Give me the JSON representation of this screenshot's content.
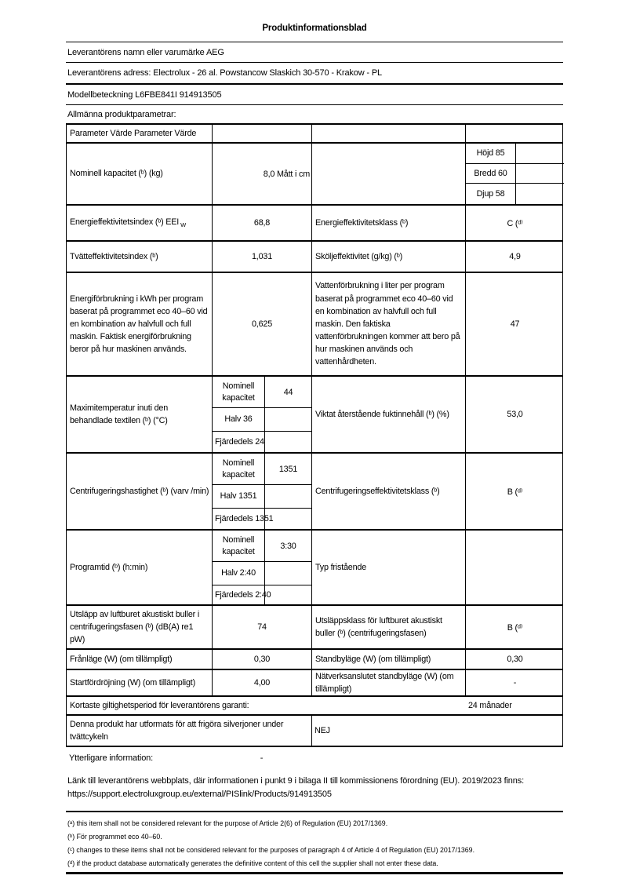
{
  "colors": {
    "background": "#ffffff",
    "text": "#000000",
    "border": "#000000"
  },
  "header": {
    "title": "Produktinformationsblad",
    "supplier_name": "Leverantörens namn eller varumärke AEG",
    "supplier_address": "Leverantörens adress: Electrolux - 26 al. Powstancow Slaskich 30-570 - Krakow - PL",
    "model": "Modellbeteckning L6FBE841I 914913505",
    "general_params_heading": "Allmänna produktparametrar:"
  },
  "table": {
    "header_row": "Parameter Värde Parameter Värde",
    "nominal": {
      "label": "Nominell kapacitet (ᵇ) (kg)",
      "value": "8,0 Mått i cm",
      "dimensions": {
        "height": "Höjd 85",
        "width": "Bredd 60",
        "depth": "Djup 58"
      }
    },
    "eei": {
      "label_main": "Energieffektivitetsindex (ᵇ) EEI",
      "label_sub": "W",
      "value": "68,8",
      "class_label": "Energieffektivitetsklass (ᵇ)",
      "class_value": "C (ᵈ⁾"
    },
    "wash": {
      "label": "Tvätteffektivitetsindex (ᵇ)",
      "value": "1,031",
      "rinse_label": "Sköljeffektivitet (g/kg) (ᵇ)",
      "rinse_value": "4,9"
    },
    "energy": {
      "label": "Energiförbrukning i kWh per program baserat på programmet eco 40–60 vid en kombination av halvfull och full maskin. Faktisk energiförbrukning beror på hur maskinen används.",
      "value": "0,625",
      "water_label": "Vattenförbrukning i liter per program baserat på programmet eco 40–60 vid en kombination av halvfull och full maskin. Den faktiska vattenförbrukningen kommer att bero på hur maskinen används och vattenhårdheten.",
      "water_value": "47"
    },
    "max_temp": {
      "label": "Maximitemperatur inuti den behandlade textilen (ᵇ) (°C)",
      "sub1_label": "Nominell kapacitet",
      "sub1_value": "44",
      "sub2": "Halv 36",
      "sub3": "Fjärdedels 24",
      "moisture_label": "Viktat återstående fuktinnehåll (ᵇ) (%)",
      "moisture_value": "53,0"
    },
    "spin": {
      "label": "Centrifugeringshastighet (ᵇ) (varv /min)",
      "sub1_label": "Nominell kapacitet",
      "sub1_value": "1351",
      "sub2": "Halv 1351",
      "sub3": "Fjärdedels 1351",
      "class_label": "Centrifugeringseffektivitetsklass (ᵇ)",
      "class_value": "B (ᵈ⁾"
    },
    "duration": {
      "label": "Programtid (ᵇ) (h:min)",
      "sub1_label": "Nominell kapacitet",
      "sub1_value": "3:30",
      "sub2": "Halv 2:40",
      "sub3": "Fjärdedels 2:40",
      "type_label": "Typ fristående"
    },
    "noise": {
      "label": "Utsläpp av luftburet akustiskt buller i centrifugeringsfasen (ᵇ) (dB(A) re1 pW)",
      "value": "74",
      "class_label": "Utsläppsklass för luftburet akustiskt buller (ᵇ) (centrifugeringsfasen)",
      "class_value": "B (ᵈ⁾"
    },
    "off_mode": {
      "label": "Frånläge (W) (om tillämpligt)",
      "value": "0,30",
      "standby_label": "Standbyläge (W) (om tillämpligt)",
      "standby_value": "0,30"
    },
    "delay": {
      "label": "Startfördröjning (W) (om tillämpligt)",
      "value": "4,00",
      "network_label": "Nätverksanslutet standbyläge (W) (om tillämpligt)",
      "network_value": "-"
    },
    "guarantee": {
      "label": "Kortaste giltighetsperiod för leverantörens garanti:",
      "value": "24 månader"
    },
    "silver": {
      "label": "Denna produkt har utformats för att frigöra silverjoner under tvättcykeln",
      "value": "NEJ"
    },
    "additional": {
      "label": "Ytterligare information:",
      "value": "-"
    }
  },
  "link": {
    "line1": "Länk till leverantörens webbplats, där informationen i punkt 9 i bilaga II till kommissionens förordning (EU). 2019/2023 finns:",
    "url": "https://support.electroluxgroup.eu/external/PISlink/Products/914913505"
  },
  "footnotes": [
    "(ᵃ) this item shall not be considered relevant for the purpose of Article 2(6) of Regulation (EU) 2017/1369.",
    "(ᵇ) För programmet eco 40–60.",
    "(ᶜ) changes to these items shall not be considered relevant for the purposes of paragraph 4 of Article 4 of Regulation (EU) 2017/1369.",
    "(ᵈ) if the product database automatically generates the definitive content of this cell the supplier shall not enter these data."
  ]
}
